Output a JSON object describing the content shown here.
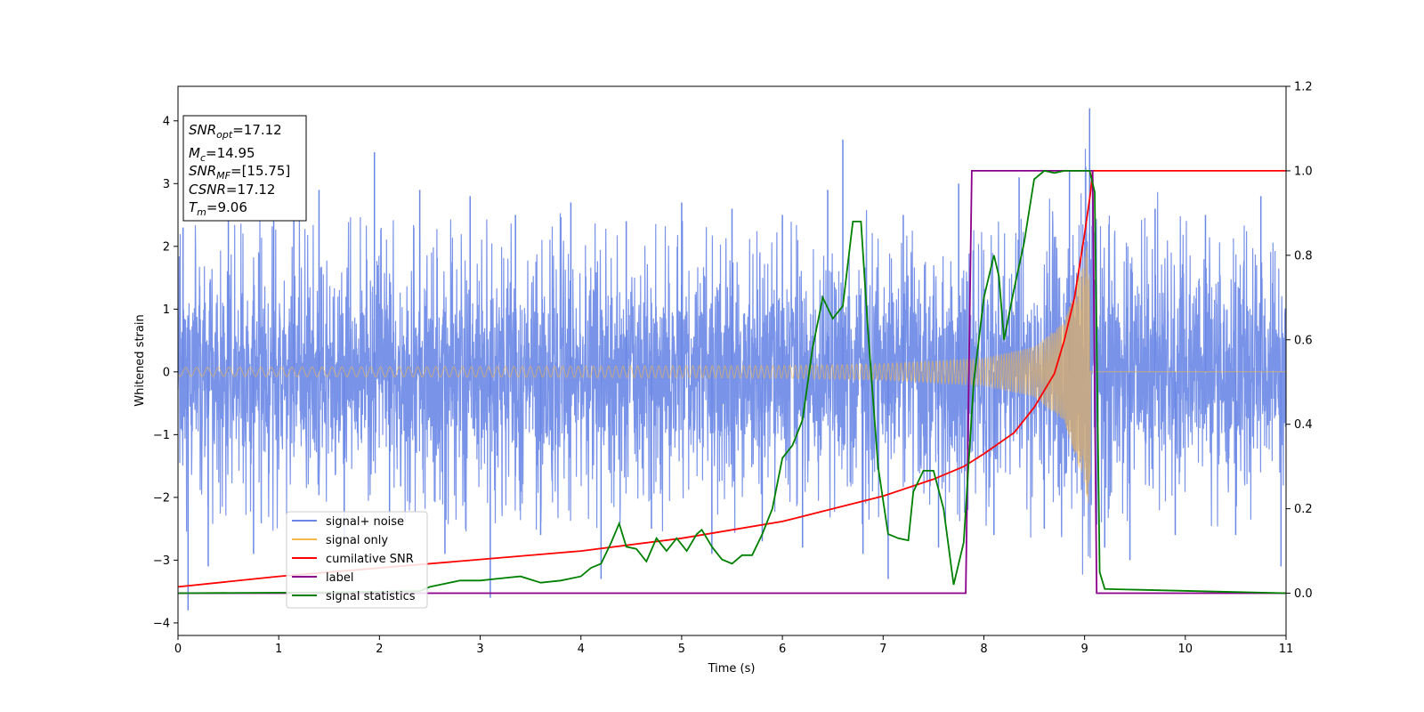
{
  "chart_data": {
    "type": "line",
    "title": "",
    "xlabel": "Time (s)",
    "ylabel": "Whitened strain",
    "xlim": [
      0,
      11
    ],
    "ylim_left": [
      -4.2,
      4.55
    ],
    "ylim_right": [
      -0.1,
      1.2
    ],
    "x_ticks": [
      0,
      1,
      2,
      3,
      4,
      5,
      6,
      7,
      8,
      9,
      10,
      11
    ],
    "y_left_ticks": [
      -4,
      -3,
      -2,
      -1,
      0,
      1,
      2,
      3,
      4
    ],
    "y_right_ticks": [
      "0.0",
      "0.2",
      "0.4",
      "0.6",
      "0.8",
      "1.0",
      "1.2"
    ],
    "legend_position": "lower-left",
    "series": [
      {
        "name": "signal+ noise",
        "axis": "left",
        "color": "#6a87e6",
        "style": "dense noisy waveform",
        "x": [
          0.05,
          0.1,
          0.3,
          0.5,
          0.75,
          0.95,
          1.15,
          1.4,
          1.65,
          1.95,
          2.1,
          2.4,
          2.65,
          2.9,
          3.1,
          3.35,
          3.6,
          3.9,
          4.2,
          4.45,
          4.7,
          5.0,
          5.3,
          5.5,
          5.8,
          6.0,
          6.2,
          6.45,
          6.6,
          6.8,
          7.05,
          7.2,
          7.55,
          7.75,
          8.1,
          8.35,
          8.6,
          8.85,
          9.05,
          9.2,
          9.45,
          9.7,
          9.9,
          10.2,
          10.5,
          10.75,
          10.95
        ],
        "peaks": [
          2.3,
          -3.8,
          -3.1,
          2.6,
          -2.9,
          2.4,
          2.5,
          2.9,
          -2.7,
          3.5,
          -2.4,
          2.9,
          -2.9,
          2.8,
          -3.6,
          2.5,
          -2.6,
          2.7,
          -3.3,
          2.4,
          -2.5,
          2.7,
          -2.9,
          2.6,
          -2.7,
          2.5,
          -2.8,
          2.9,
          3.7,
          -2.9,
          -3.3,
          2.5,
          -2.8,
          3.0,
          -2.6,
          3.1,
          -2.5,
          3.2,
          4.2,
          -2.8,
          -3.0,
          2.6,
          -2.6,
          2.5,
          -2.6,
          2.8,
          -3.1
        ]
      },
      {
        "name": "signal only",
        "axis": "left",
        "color": "#f5b84a",
        "style": "chirp waveform merging at about t=9.06 s",
        "merger_time": 9.06,
        "envelope": {
          "x": [
            0,
            2,
            4,
            6,
            7,
            8,
            8.5,
            8.8,
            9.0,
            9.06,
            9.1,
            11
          ],
          "amp": [
            0.07,
            0.08,
            0.09,
            0.1,
            0.13,
            0.22,
            0.4,
            0.8,
            1.8,
            2.3,
            0.0,
            0.0
          ]
        }
      },
      {
        "name": "cumilative SNR",
        "axis": "right",
        "color": "#ff0000",
        "x": [
          0,
          1,
          2,
          3,
          4,
          5,
          6,
          6.5,
          7,
          7.5,
          7.8,
          8.0,
          8.3,
          8.5,
          8.7,
          8.8,
          8.9,
          9.0,
          9.06,
          9.08,
          11
        ],
        "values": [
          0.015,
          0.04,
          0.06,
          0.08,
          0.1,
          0.13,
          0.17,
          0.2,
          0.23,
          0.27,
          0.3,
          0.33,
          0.38,
          0.44,
          0.52,
          0.6,
          0.7,
          0.85,
          0.95,
          1.0,
          1.0
        ]
      },
      {
        "name": "label",
        "axis": "right",
        "color": "#8b008b",
        "x": [
          0,
          7.82,
          7.88,
          9.08,
          9.12,
          11
        ],
        "values": [
          0,
          0,
          1,
          1,
          0,
          0
        ]
      },
      {
        "name": "signal statistics",
        "axis": "right",
        "color": "#008000",
        "x": [
          0,
          1.5,
          2.4,
          2.5,
          2.6,
          2.8,
          3.0,
          3.2,
          3.4,
          3.6,
          3.8,
          4.0,
          4.1,
          4.2,
          4.3,
          4.38,
          4.45,
          4.55,
          4.65,
          4.75,
          4.85,
          4.95,
          5.05,
          5.15,
          5.2,
          5.3,
          5.4,
          5.5,
          5.6,
          5.7,
          5.8,
          5.9,
          6.0,
          6.1,
          6.2,
          6.3,
          6.4,
          6.5,
          6.6,
          6.7,
          6.78,
          6.85,
          6.95,
          7.05,
          7.15,
          7.25,
          7.3,
          7.4,
          7.5,
          7.6,
          7.7,
          7.8,
          7.9,
          8.0,
          8.1,
          8.15,
          8.2,
          8.3,
          8.4,
          8.5,
          8.6,
          8.7,
          8.8,
          8.95,
          9.05,
          9.1,
          9.15,
          9.2,
          11
        ],
        "values": [
          0,
          0.002,
          0.005,
          0.015,
          0.02,
          0.03,
          0.03,
          0.035,
          0.04,
          0.025,
          0.03,
          0.04,
          0.06,
          0.07,
          0.12,
          0.165,
          0.11,
          0.105,
          0.075,
          0.13,
          0.1,
          0.13,
          0.1,
          0.14,
          0.15,
          0.11,
          0.08,
          0.07,
          0.09,
          0.09,
          0.14,
          0.2,
          0.32,
          0.35,
          0.41,
          0.58,
          0.7,
          0.65,
          0.68,
          0.88,
          0.88,
          0.62,
          0.3,
          0.14,
          0.13,
          0.125,
          0.24,
          0.29,
          0.29,
          0.2,
          0.02,
          0.12,
          0.5,
          0.7,
          0.8,
          0.75,
          0.6,
          0.72,
          0.83,
          0.98,
          1.0,
          0.995,
          1.0,
          1.0,
          1.0,
          0.95,
          0.05,
          0.01,
          0.0
        ]
      }
    ],
    "annotation_box": {
      "position": "top-left",
      "lines": [
        {
          "base": "SNR",
          "sub": "opt",
          "value": "=17.12"
        },
        {
          "base": "M",
          "sub": "c",
          "value": "=14.95"
        },
        {
          "base": "SNR",
          "sub": "MF",
          "value": "=[15.75]"
        },
        {
          "base": "CSNR",
          "sub": "",
          "value": "=17.12"
        },
        {
          "base": "T",
          "sub": "m",
          "value": "=9.06"
        }
      ]
    }
  }
}
